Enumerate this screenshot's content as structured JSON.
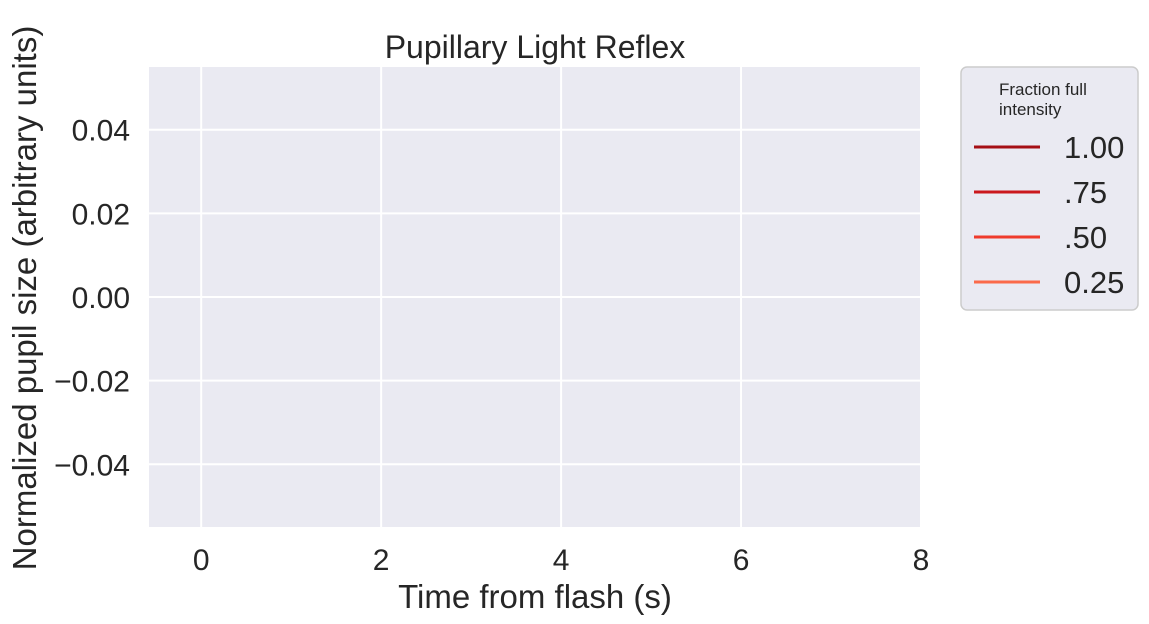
{
  "chart_data": {
    "type": "line",
    "title": "Pupillary Light Reflex",
    "xlabel": "Time from flash (s)",
    "ylabel": "Normalized pupil size (arbitrary units)",
    "xlim": [
      -0.58,
      8.0
    ],
    "ylim": [
      -0.055,
      0.055
    ],
    "xticks": [
      0,
      2,
      4,
      6,
      8
    ],
    "xtick_labels": [
      "0",
      "2",
      "4",
      "6",
      "8"
    ],
    "yticks": [
      0.04,
      0.02,
      0.0,
      -0.02,
      -0.04
    ],
    "ytick_labels": [
      "0.04",
      "0.02",
      "0.00",
      "−0.02",
      "−0.04"
    ],
    "grid": true,
    "background": "#eaeaf2",
    "legend": {
      "title_lines": [
        "Fraction full",
        "intensity"
      ],
      "placement": "outside-upper-right",
      "entries": [
        {
          "label": "1.00",
          "color": "#a50f15"
        },
        {
          "label": ".75",
          "color": "#cb181d"
        },
        {
          "label": ".50",
          "color": "#ef3b2c"
        },
        {
          "label": "0.25",
          "color": "#fb6a4a"
        }
      ]
    },
    "series": [
      {
        "name": "1.00",
        "x": [],
        "y": []
      },
      {
        "name": ".75",
        "x": [],
        "y": []
      },
      {
        "name": ".50",
        "x": [],
        "y": []
      },
      {
        "name": "0.25",
        "x": [],
        "y": []
      }
    ]
  }
}
